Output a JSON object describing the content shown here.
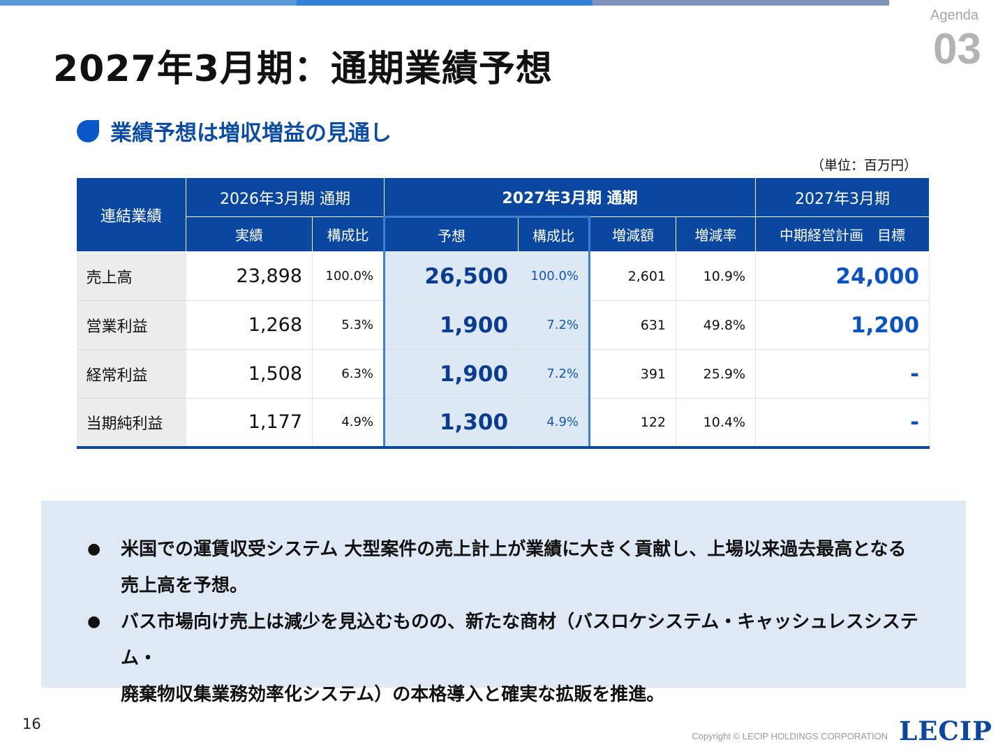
{
  "agenda": {
    "label": "Agenda",
    "number": "03"
  },
  "page_title": "2027年3月期：通期業績予想",
  "subheading": "業績予想は増収増益の見通し",
  "unit_note": "（単位：百万円）",
  "table": {
    "corner": "連結業績",
    "group_headers": [
      "2026年3月期 通期",
      "2027年3月期 通期",
      "2027年3月期"
    ],
    "sub_headers": [
      "実績",
      "構成比",
      "予想",
      "構成比",
      "増減額",
      "増減率",
      "中期経営計画　目標"
    ],
    "rows": [
      {
        "label": "売上高",
        "actual": "23,898",
        "actual_ratio": "100.0%",
        "forecast": "26,500",
        "forecast_ratio": "100.0%",
        "change": "2,601",
        "change_rate": "10.9%",
        "target": "24,000"
      },
      {
        "label": "営業利益",
        "actual": "1,268",
        "actual_ratio": "5.3%",
        "forecast": "1,900",
        "forecast_ratio": "7.2%",
        "change": "631",
        "change_rate": "49.8%",
        "target": "1,200"
      },
      {
        "label": "経常利益",
        "actual": "1,508",
        "actual_ratio": "6.3%",
        "forecast": "1,900",
        "forecast_ratio": "7.2%",
        "change": "391",
        "change_rate": "25.9%",
        "target": "-"
      },
      {
        "label": "当期純利益",
        "actual": "1,177",
        "actual_ratio": "4.9%",
        "forecast": "1,300",
        "forecast_ratio": "4.9%",
        "change": "122",
        "change_rate": "10.4%",
        "target": "-"
      }
    ]
  },
  "notes": [
    {
      "bullet": "●",
      "lines": [
        "米国での運賃収受システム 大型案件の売上計上が業績に大きく貢献し、上場以来過去最高となる",
        "売上高を予想。"
      ]
    },
    {
      "bullet": "●",
      "lines": [
        "バス市場向け売上は減少を見込むものの、新たな商材（バスロケシステム・キャッシュレスシステム・",
        "廃棄物収集業務効率化システム）の本格導入と確実な拡販を推進。"
      ]
    }
  ],
  "footer": {
    "page_number": "16",
    "copyright": "Copyright © LECIP HOLDINGS CORPORATION",
    "logo": "LECIP"
  },
  "colors": {
    "header_blue": "#0947a0",
    "accent_blue": "#0a57c9",
    "forecast_bg": "#dde8f5",
    "notes_bg": "#dfe9f5"
  }
}
